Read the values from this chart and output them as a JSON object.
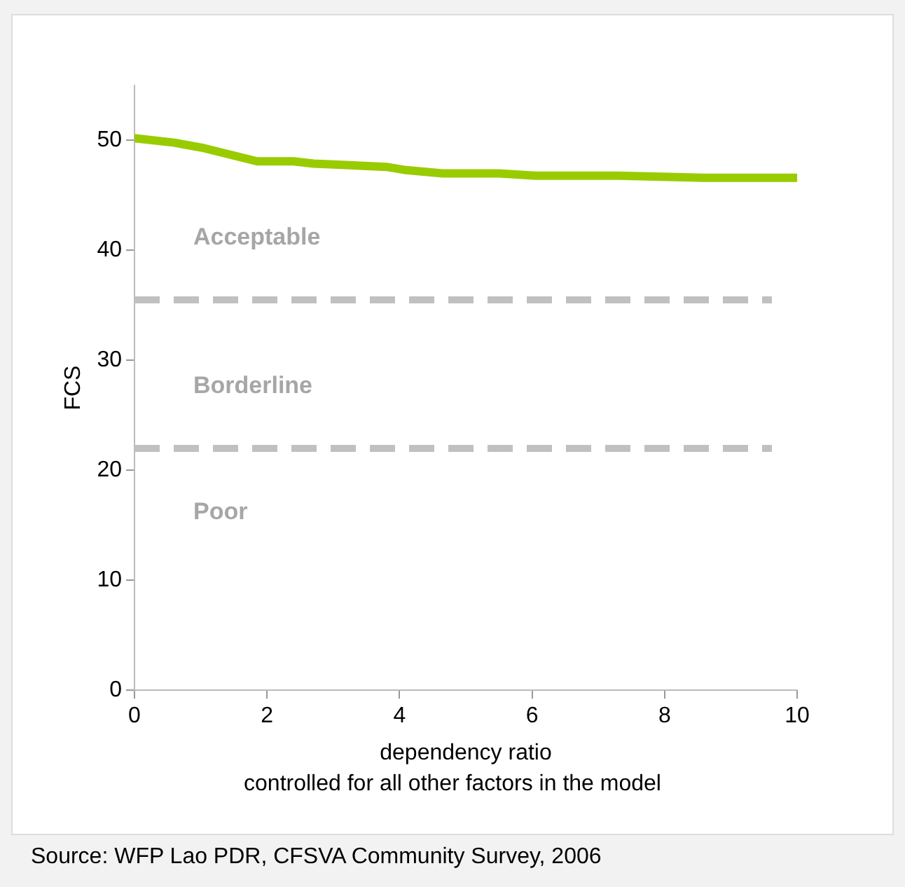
{
  "chart_data": {
    "type": "line",
    "xlabel": "dependency ratio",
    "ylabel": "FCS",
    "x": [
      0,
      0.6,
      1.05,
      1.85,
      2.4,
      2.7,
      3.8,
      4.1,
      4.65,
      5.5,
      6.05,
      7.3,
      8.6,
      10
    ],
    "series": [
      {
        "color": "#99cc00",
        "values": [
          50.2,
          49.8,
          49.3,
          48.1,
          48.1,
          47.9,
          47.6,
          47.3,
          47.0,
          47.0,
          46.8,
          46.8,
          46.6,
          46.6
        ]
      }
    ],
    "xlim": [
      0,
      10
    ],
    "xticks": [
      0,
      2,
      4,
      6,
      8,
      10
    ],
    "ylim": [
      0,
      55
    ],
    "yticks": [
      0,
      10,
      20,
      30,
      40,
      50
    ],
    "grid": false,
    "legend": false,
    "marker": "none",
    "line_style": "solid",
    "ref_lines": [
      {
        "axis": "y",
        "value": 35.5,
        "color": "#c0c0c0",
        "line_style": "dashed"
      },
      {
        "axis": "y",
        "value": 22,
        "color": "#c0c0c0",
        "line_style": "dashed"
      }
    ],
    "annotations": [
      "Acceptable",
      "Borderline",
      "Poor",
      "controlled for all other factors in the model",
      "Source: WFP Lao PDR, CFSVA Community Survey, 2006"
    ]
  }
}
